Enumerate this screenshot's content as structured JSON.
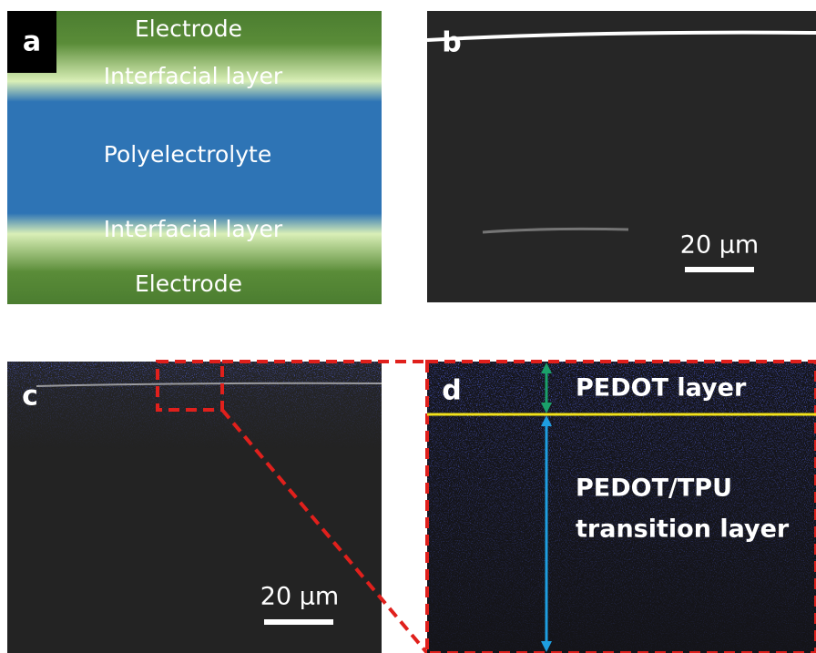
{
  "panel_a": {
    "label": "a",
    "layers": [
      "Electrode",
      "Interfacial layer",
      "Polyelectrolyte",
      "Interfacial layer",
      "Electrode"
    ]
  },
  "panel_b": {
    "label": "b",
    "scale_bar": "20 µm"
  },
  "panel_c": {
    "label": "c",
    "scale_bar": "20 µm"
  },
  "panel_d": {
    "label": "d",
    "pedot_layer": "PEDOT layer",
    "transition_layer": [
      "PEDOT/TPU",
      "transition layer"
    ]
  }
}
